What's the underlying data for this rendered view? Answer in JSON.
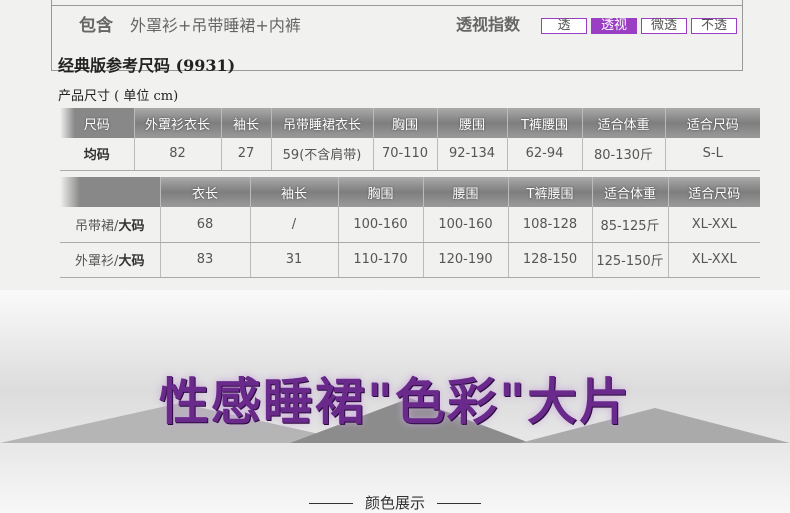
{
  "header": {
    "contains_label": "包含",
    "contains_value": "外罩衫+吊带睡裙+内裤",
    "sheer_label": "透视指数",
    "sheer_options": [
      "透",
      "透视",
      "微透",
      "不透"
    ],
    "sheer_selected": "透视"
  },
  "title": "经典版参考尺码 (9931)",
  "subtitle": "产品尺寸 ( 单位 cm)",
  "table1": {
    "headers": [
      "尺码",
      "外罩衫衣长",
      "袖长",
      "吊带睡裙衣长",
      "胸围",
      "腰围",
      "T裤腰围",
      "适合体重",
      "适合尺码"
    ],
    "rows": [
      [
        "均码",
        "82",
        "27",
        "59(不含肩带)",
        "70-110",
        "92-134",
        "62-94",
        "80-130斤",
        "S-L"
      ]
    ]
  },
  "table2": {
    "headers": [
      "",
      "衣长",
      "袖长",
      "胸围",
      "腰围",
      "T裤腰围",
      "适合体重",
      "适合尺码"
    ],
    "rows": [
      {
        "item": "吊带裙/",
        "size": "大码",
        "cells": [
          "68",
          "/",
          "100-160",
          "100-160",
          "108-128",
          "85-125斤",
          "XL-XXL"
        ]
      },
      {
        "item": "外罩衫/",
        "size": "大码",
        "cells": [
          "83",
          "31",
          "110-170",
          "120-190",
          "128-150",
          "125-150斤",
          "XL-XXL"
        ]
      }
    ]
  },
  "banner": {
    "title": "性感睡裙\"色彩\"大片"
  },
  "section": {
    "label": "颜色展示"
  },
  "colors": {
    "accent": "#9a3fc4",
    "title_purple": "#6a2a8c"
  }
}
